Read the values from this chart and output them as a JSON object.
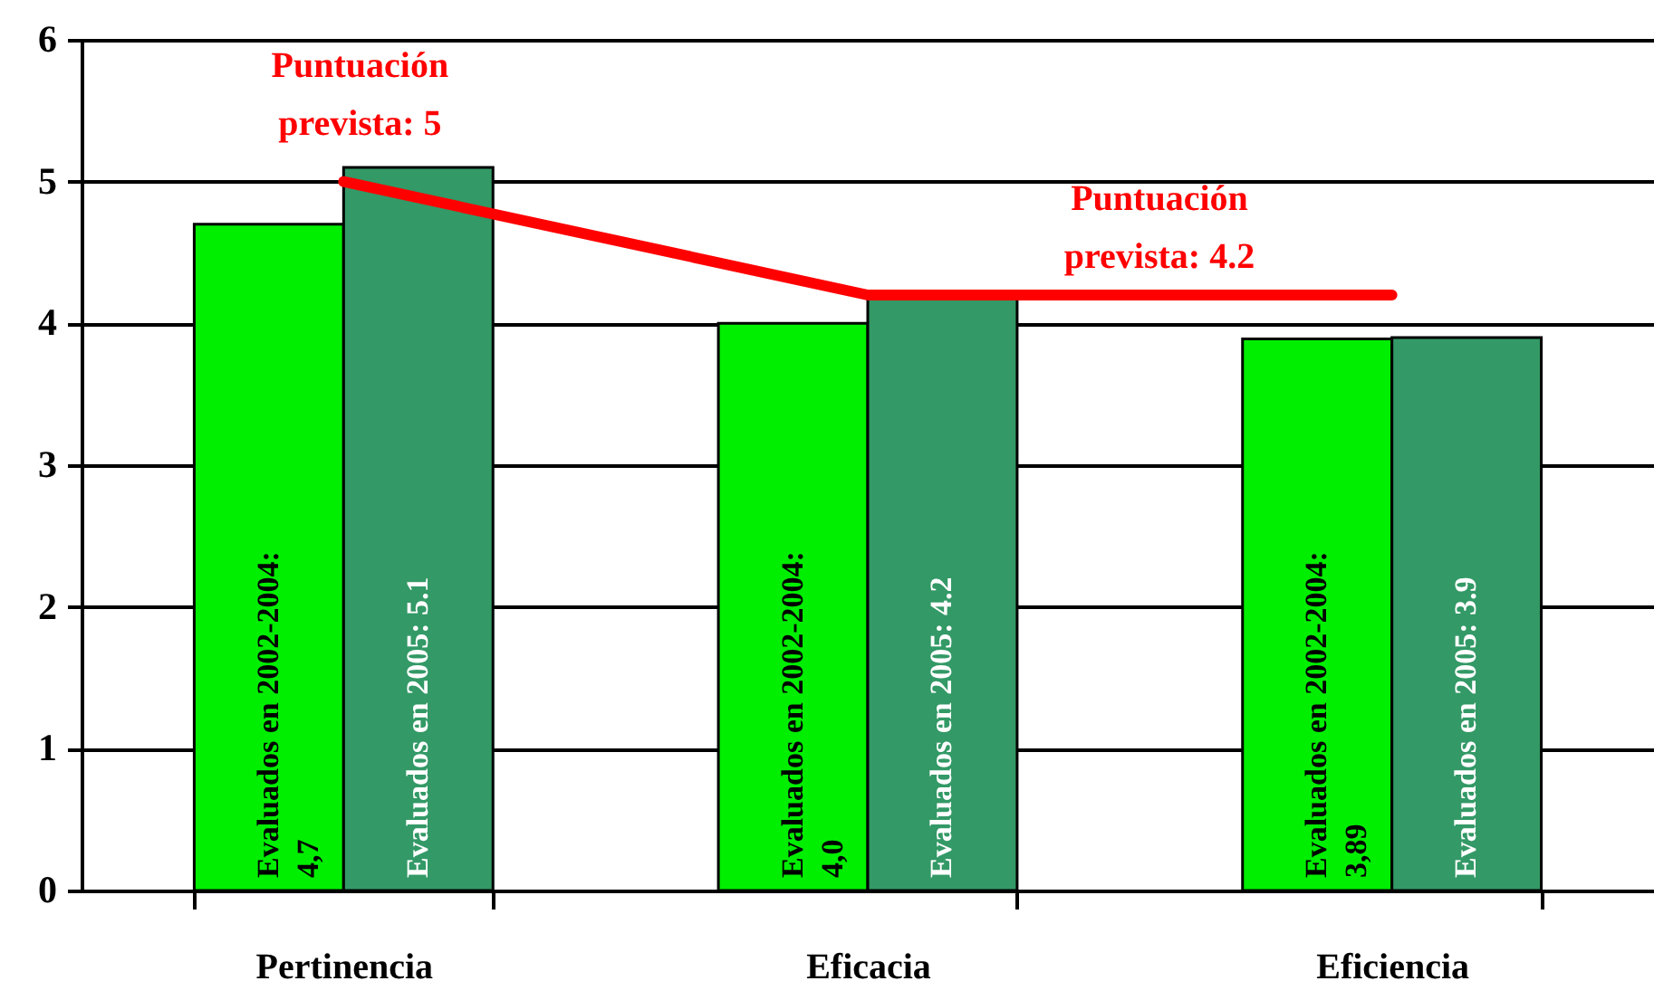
{
  "chart_data": {
    "type": "bar",
    "categories": [
      "Pertinencia",
      "Eficacia",
      "Eficiencia"
    ],
    "series": [
      {
        "color": "#00ee00",
        "values": [
          4.7,
          4.0,
          3.89
        ],
        "value_labels": [
          "Evaluados en 2002-2004: 4,7",
          "Evaluados en 2002-2004: 4,0",
          "Evaluados en 2002-2004: 3,89"
        ]
      },
      {
        "color": "#339966",
        "values": [
          5.1,
          4.2,
          3.9
        ],
        "value_labels": [
          "Evaluados en 2005: 5.1",
          "Evaluados en 2005: 4.2",
          "Evaluados en 2005: 3.9"
        ]
      },
      {
        "type": "line",
        "color": "#ff0000",
        "values": [
          5,
          4.2,
          4.2
        ]
      }
    ],
    "annotations": [
      {
        "text": "Puntuación prevista: 5",
        "x": "Pertinencia",
        "y": 5
      },
      "Puntuación prevista: 4.2"
    ],
    "ylim": [
      0,
      6
    ],
    "yticks": [
      0,
      1,
      2,
      3,
      4,
      5,
      6
    ],
    "grid": "y",
    "legend": false
  }
}
